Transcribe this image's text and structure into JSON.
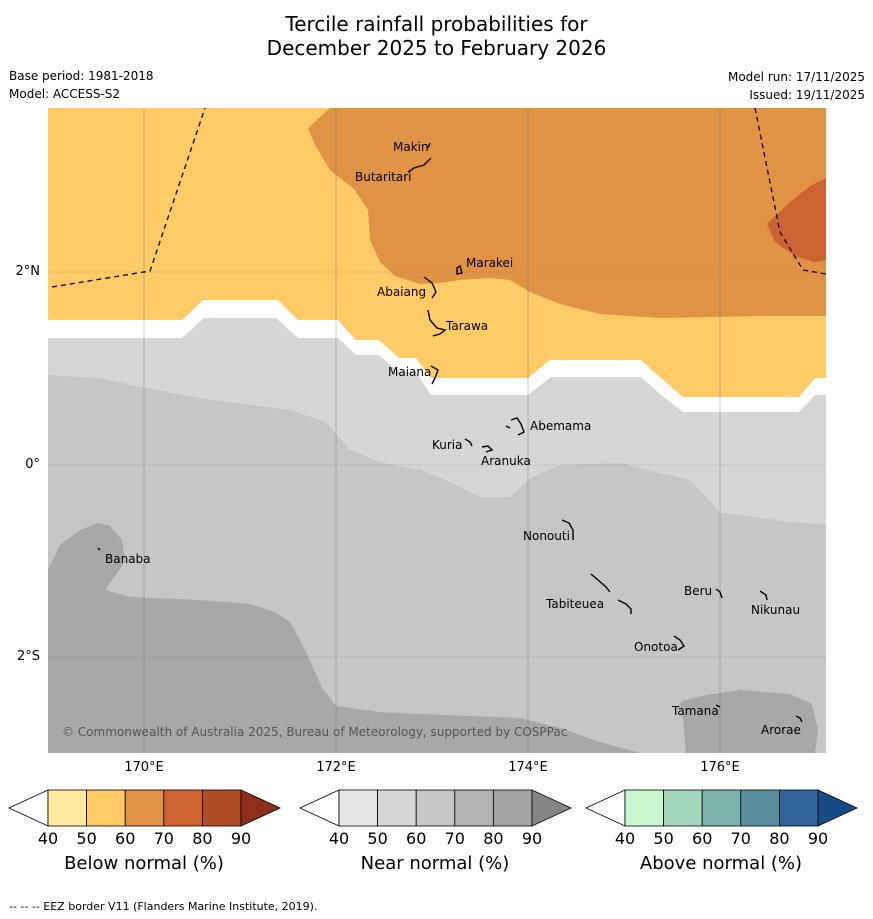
{
  "header": {
    "title_line1": "Tercile rainfall probabilities for",
    "title_line2": "December 2025 to February 2026",
    "base_period": "Base period: 1981-2018",
    "model": "Model: ACCESS-S2",
    "model_run": "Model run: 17/11/2025",
    "issued": "Issued: 19/11/2025"
  },
  "map": {
    "copyright": "© Commonwealth of Australia 2025, Bureau of Meteorology, supported by COSPPac",
    "lon_labels": [
      "170°E",
      "172°E",
      "174°E",
      "176°E"
    ],
    "lat_labels": [
      "2°N",
      "0°",
      "2°S"
    ],
    "islands": [
      "Makin",
      "Butaritari",
      "Marakei",
      "Abaiang",
      "Tarawa",
      "Maiana",
      "Abemama",
      "Kuria",
      "Aranuka",
      "Nonouti",
      "Banaba",
      "Tabiteuea",
      "Beru",
      "Nikunau",
      "Onotoa",
      "Tamana",
      "Arorae"
    ],
    "colors": {
      "below_50": "#fecb66",
      "below_60": "#e09344",
      "below_70": "#cc6431",
      "near_40": "#d6d6d6",
      "near_50": "#c6c6c6",
      "near_60": "#a8a8a8",
      "near_70": "#9b9b9b"
    }
  },
  "colorbars": [
    {
      "title": "Below normal (%)",
      "ticks": [
        "40",
        "50",
        "60",
        "70",
        "80",
        "90"
      ],
      "colors": [
        "#ffffff",
        "#ffeaa0",
        "#fecb66",
        "#e09344",
        "#cc6431",
        "#b04d28",
        "#8f2e1a"
      ]
    },
    {
      "title": "Near normal (%)",
      "ticks": [
        "40",
        "50",
        "60",
        "70",
        "80",
        "90"
      ],
      "colors": [
        "#ffffff",
        "#e5e5e5",
        "#d6d6d6",
        "#c6c6c6",
        "#b3b3b3",
        "#a3a3a3",
        "#858585"
      ]
    },
    {
      "title": "Above normal (%)",
      "ticks": [
        "40",
        "50",
        "60",
        "70",
        "80",
        "90"
      ],
      "colors": [
        "#ffffff",
        "#c8f7cd",
        "#a2d7bc",
        "#7cb4ac",
        "#5a8fa0",
        "#33669a",
        "#174b88"
      ]
    }
  ],
  "footer": "--  --  -- EEZ border V11 (Flanders Marine Institute, 2019)."
}
